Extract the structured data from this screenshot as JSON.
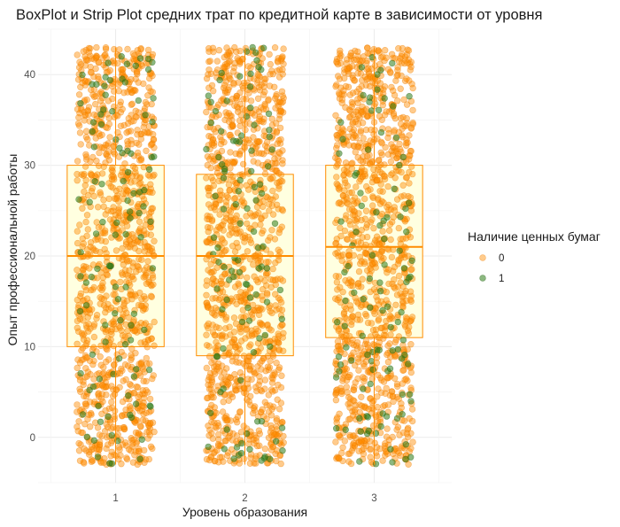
{
  "chart_data": {
    "type": "box",
    "title": "BoxPlot и Strip Plot средних трат по кредитной карте в зависимости от уровня",
    "xlabel": "Уровень образования",
    "ylabel": "Опыт профессиональной работы",
    "categories": [
      "1",
      "2",
      "3"
    ],
    "y_ticks": [
      "0",
      "10",
      "20",
      "30",
      "40"
    ],
    "ylim": [
      -5,
      45
    ],
    "y_tick_values": [
      0,
      10,
      20,
      30,
      40
    ],
    "grid": true,
    "boxes": [
      {
        "category": "1",
        "whisker_low": -3,
        "q1": 10,
        "median": 20,
        "q3": 30,
        "whisker_high": 43
      },
      {
        "category": "2",
        "whisker_low": -3,
        "q1": 9,
        "median": 20,
        "q3": 29,
        "whisker_high": 43
      },
      {
        "category": "3",
        "whisker_low": -3,
        "q1": 11,
        "median": 21,
        "q3": 30,
        "whisker_high": 43
      }
    ],
    "box_fill": "#ffffe0",
    "box_stroke": "#ff8c00",
    "legend": {
      "title": "Наличие ценных бумаг",
      "position": "right",
      "entries": [
        {
          "label": "0",
          "color": "#ff8c00"
        },
        {
          "label": "1",
          "color": "#2e7d18"
        }
      ]
    },
    "strip": {
      "y_range": [
        -3,
        43
      ],
      "jitter_width": 0.3,
      "points_per_category": {
        "0": 1150,
        "1": 110
      }
    }
  }
}
